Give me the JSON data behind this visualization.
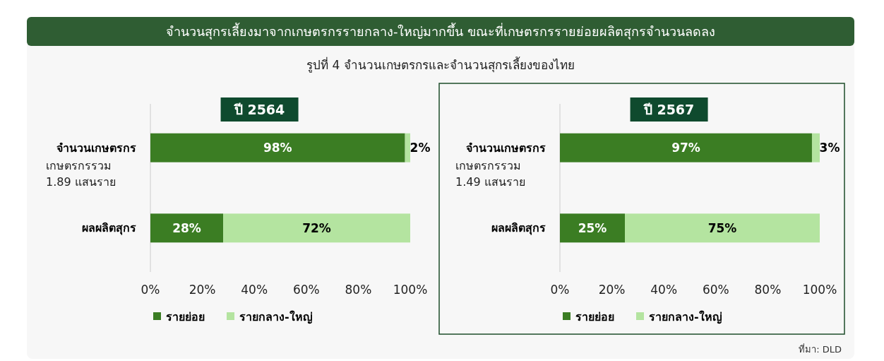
{
  "chart_data": [
    {
      "type": "bar",
      "orientation": "horizontal",
      "stacked": true,
      "title": "ปี 2564",
      "categories": [
        "จำนวนเกษตรกร",
        "ผลผลิตสุกร"
      ],
      "series": [
        {
          "name": "รายย่อย",
          "color": "#3b7d23",
          "values": [
            98,
            28
          ],
          "value_labels": [
            "98%",
            "28%"
          ]
        },
        {
          "name": "รายกลาง-ใหญ่",
          "color": "#b4e4a0",
          "values": [
            2,
            72
          ],
          "value_labels": [
            "2%",
            "72%"
          ]
        }
      ],
      "xlim": [
        0,
        100
      ],
      "xticks": [
        {
          "value": 0,
          "label": "0%"
        },
        {
          "value": 20,
          "label": "20%"
        },
        {
          "value": 40,
          "label": "40%"
        },
        {
          "value": 60,
          "label": "60%"
        },
        {
          "value": 80,
          "label": "80%"
        },
        {
          "value": 100,
          "label": "100%"
        }
      ],
      "grid": false,
      "legend": "bottom",
      "annotations": [
        "จำนวนสุกรเลี้ยงมาจากเกษตรกรรายกลาง-ใหญ่มากขึ้น ขณะที่เกษตรกรรายย่อยผลิตสุกรจำนวนลดลง",
        "รูปที่ 4 จำนวนเกษตรกรและจำนวนสุกรเลี้ยงของไทย",
        "เกษตรกรรวม 1.89 แสนราย"
      ]
    },
    {
      "type": "bar",
      "orientation": "horizontal",
      "stacked": true,
      "title": "ปี 2567",
      "categories": [
        "จำนวนเกษตรกร",
        "ผลผลิตสุกร"
      ],
      "series": [
        {
          "name": "รายย่อย",
          "color": "#3b7d23",
          "values": [
            97,
            25
          ],
          "value_labels": [
            "97%",
            "25%"
          ]
        },
        {
          "name": "รายกลาง-ใหญ่",
          "color": "#b4e4a0",
          "values": [
            3,
            75
          ],
          "value_labels": [
            "3%",
            "75%"
          ]
        }
      ],
      "xlim": [
        0,
        100
      ],
      "xticks": [
        {
          "value": 0,
          "label": "0%"
        },
        {
          "value": 20,
          "label": "20%"
        },
        {
          "value": 40,
          "label": "40%"
        },
        {
          "value": 60,
          "label": "60%"
        },
        {
          "value": 80,
          "label": "80%"
        },
        {
          "value": 100,
          "label": "100%"
        }
      ],
      "grid": false,
      "legend": "bottom",
      "annotations": [
        "เกษตรกรรวม 1.49 แสนราย",
        "ที่มา: DLD"
      ]
    }
  ]
}
